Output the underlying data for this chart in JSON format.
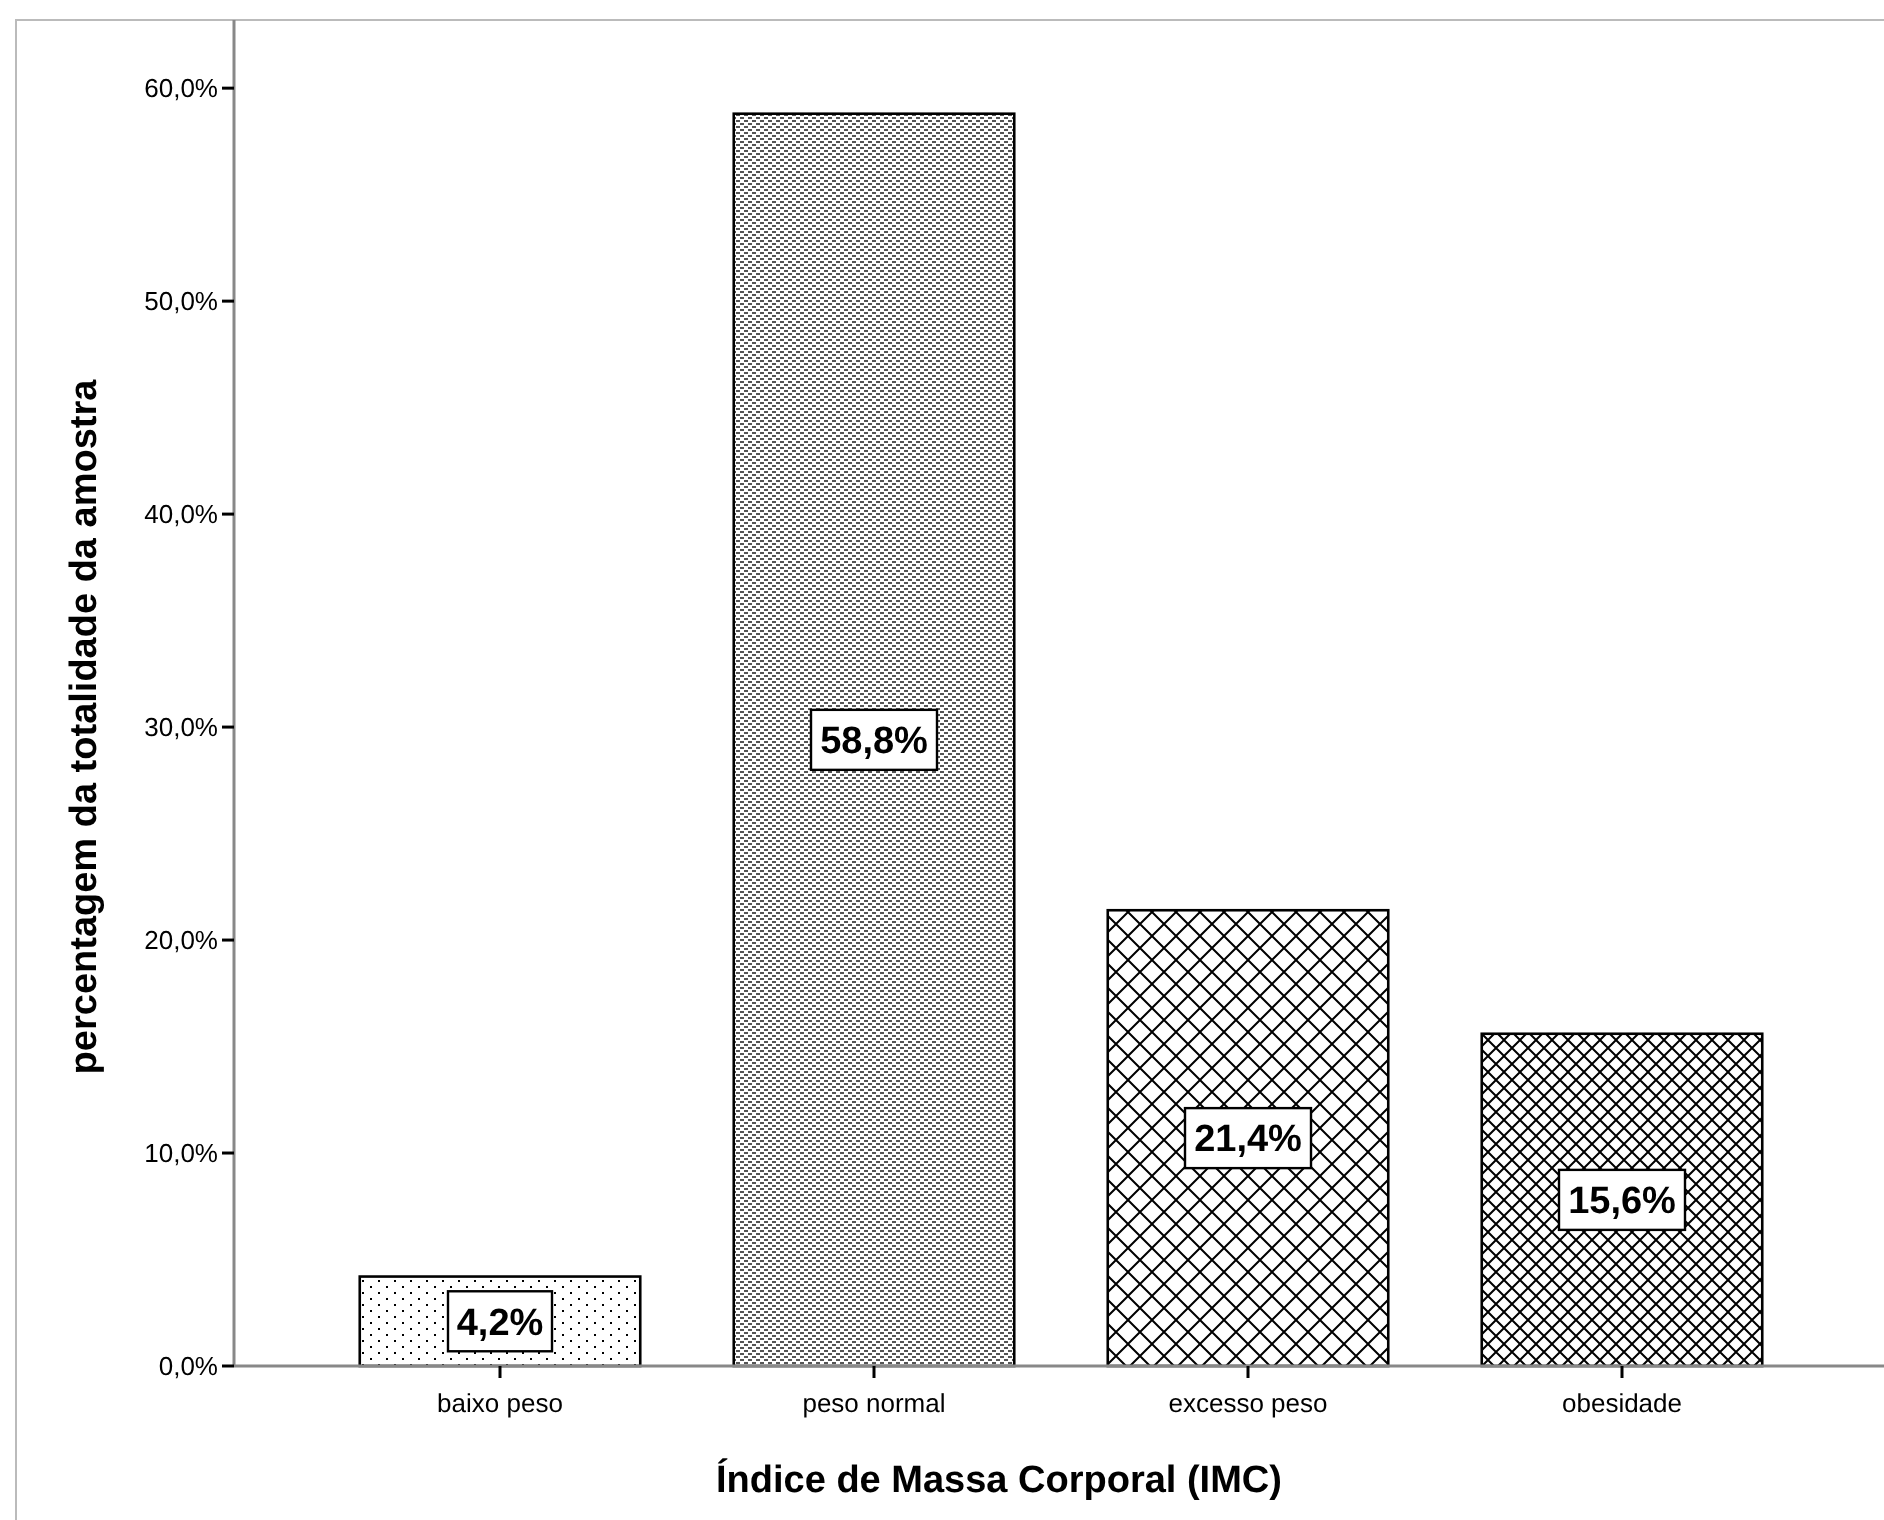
{
  "chart_data": {
    "type": "bar",
    "xlabel": "Índice de Massa Corporal (IMC)",
    "ylabel": "percentagem da totalidade da amostra",
    "categories": [
      "baixo peso",
      "peso normal",
      "excesso peso",
      "obesidade"
    ],
    "values": [
      4.2,
      58.8,
      21.4,
      15.6
    ],
    "value_labels": [
      "4,2%",
      "58,8%",
      "21,4%",
      "15,6%"
    ],
    "ylim": [
      0,
      63.2
    ],
    "yticks": [
      {
        "value": 0,
        "label": "0,0%"
      },
      {
        "value": 10,
        "label": "10,0%"
      },
      {
        "value": 20,
        "label": "20,0%"
      },
      {
        "value": 30,
        "label": "30,0%"
      },
      {
        "value": 40,
        "label": "40,0%"
      },
      {
        "value": 50,
        "label": "50,0%"
      },
      {
        "value": 60,
        "label": "60,0%"
      }
    ],
    "grid": false
  }
}
